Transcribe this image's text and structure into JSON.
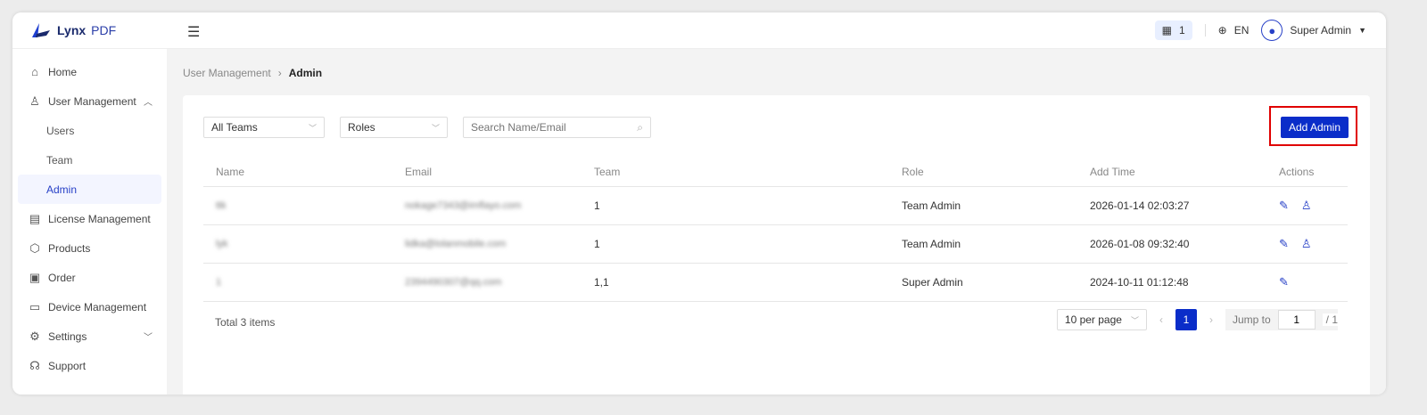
{
  "app": {
    "logo_name": "Lynx",
    "logo_suffix": "PDF",
    "brand_color": "#0a2dc9"
  },
  "header": {
    "org_count": "1",
    "language": "EN",
    "user": "Super Admin"
  },
  "sidebar": {
    "items": [
      {
        "label": "Home",
        "icon": "home-icon"
      },
      {
        "label": "User Management",
        "icon": "user-manage-icon",
        "expanded": true
      },
      {
        "label": "Users",
        "sub": true
      },
      {
        "label": "Team",
        "sub": true
      },
      {
        "label": "Admin",
        "sub": true,
        "active": true
      },
      {
        "label": "License Management",
        "icon": "license-icon"
      },
      {
        "label": "Products",
        "icon": "products-icon"
      },
      {
        "label": "Order",
        "icon": "order-icon"
      },
      {
        "label": "Device Management",
        "icon": "device-icon"
      },
      {
        "label": "Settings",
        "icon": "settings-icon"
      },
      {
        "label": "Support",
        "icon": "headset-icon"
      }
    ]
  },
  "breadcrumb": {
    "parent": "User Management",
    "current": "Admin"
  },
  "filters": {
    "team": "All Teams",
    "role": "Roles",
    "search_placeholder": "Search Name/Email"
  },
  "add_button": "Add Admin",
  "table": {
    "columns": [
      "Name",
      "Email",
      "Team",
      "Role",
      "Add Time",
      "Actions"
    ],
    "rows": [
      {
        "name": "ttk",
        "email": "nokage7343@imflayo.com",
        "team": "1",
        "role": "Team Admin",
        "time": "2026-01-14 02:03:27"
      },
      {
        "name": "lyk",
        "email": "lidka@lolanmobile.com",
        "team": "1",
        "role": "Team Admin",
        "time": "2026-01-08 09:32:40"
      },
      {
        "name": "1",
        "email": "2394490307@qq.com",
        "team": "1,1",
        "role": "Super Admin",
        "time": "2024-10-11 01:12:48"
      }
    ]
  },
  "footer": {
    "total": "Total 3 items",
    "per_page": "10 per page",
    "page": "1",
    "jump_label": "Jump to",
    "jump_value": "1",
    "page_total": "/ 1"
  }
}
